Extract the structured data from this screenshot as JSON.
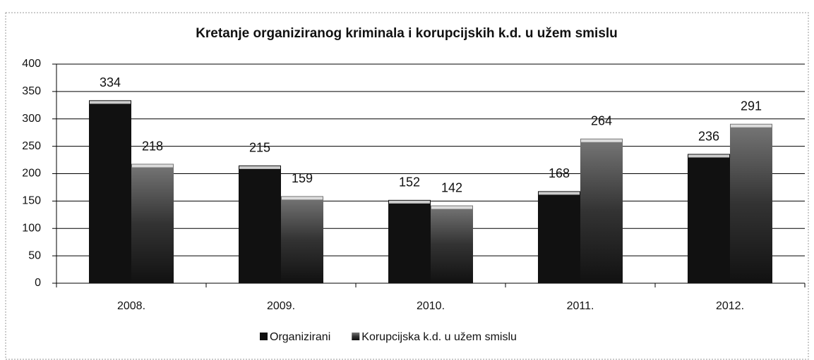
{
  "chart_data": {
    "type": "bar",
    "title": "Kretanje organiziranog kriminala i korupcijskih k.d. u užem smislu",
    "categories": [
      "2008.",
      "2009.",
      "2010.",
      "2011.",
      "2012."
    ],
    "series": [
      {
        "name": "Organizirani",
        "color": "#111111",
        "values": [
          334,
          215,
          152,
          168,
          236
        ]
      },
      {
        "name": "Korupcijska k.d. u užem smislu",
        "color": "#3a3a3a",
        "values": [
          218,
          159,
          142,
          264,
          291
        ]
      }
    ],
    "ylim": [
      0,
      400
    ],
    "yticks": [
      0,
      50,
      100,
      150,
      200,
      250,
      300,
      350,
      400
    ],
    "grid": true,
    "legend": "bottom"
  }
}
